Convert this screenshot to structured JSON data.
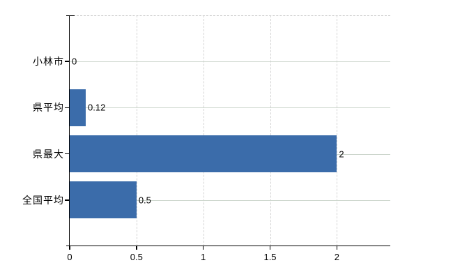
{
  "chart_data": {
    "type": "bar",
    "orientation": "horizontal",
    "title": "",
    "xlabel": "",
    "ylabel": "",
    "categories": [
      "小林市",
      "県平均",
      "県最大",
      "全国平均"
    ],
    "values": [
      0,
      0.12,
      2,
      0.5
    ],
    "value_labels": [
      "0",
      "0.12",
      "2",
      "0.5"
    ],
    "xticks": [
      0,
      0.5,
      1,
      1.5,
      2
    ],
    "xtick_labels": [
      "0",
      "0.5",
      "1",
      "1.5",
      "2"
    ],
    "xlim": [
      0,
      2.4
    ],
    "grid": "on",
    "legend": "none",
    "colors": {
      "bar": "#3b6caa",
      "grid_horizontal": "#cdd6cd",
      "grid_vertical": "#d4d4d4",
      "plot_top_border": "#c9c9c9",
      "axis": "#000000",
      "text": "#000000",
      "background": "#ffffff"
    }
  }
}
